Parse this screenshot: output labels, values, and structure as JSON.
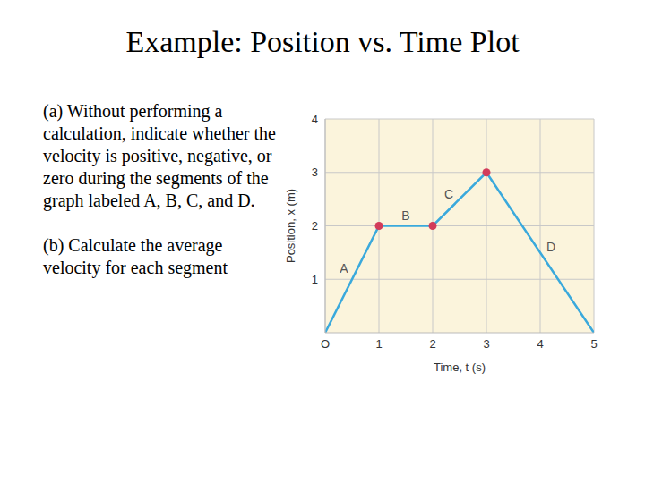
{
  "slide": {
    "title": "Example: Position vs. Time Plot",
    "paragraphs": [
      "(a) Without performing a calculation, indicate whether the velocity is positive, negative, or zero during the segments of the graph labeled A, B, C, and D.",
      "(b) Calculate the average velocity for each segment"
    ]
  },
  "chart_data": {
    "type": "line",
    "xlabel": "Time, t (s)",
    "ylabel": "Position, x (m)",
    "xlim": [
      0,
      5
    ],
    "ylim": [
      0,
      4
    ],
    "xticks": [
      {
        "value": 0,
        "label": "O"
      },
      1,
      2,
      3,
      4,
      5
    ],
    "yticks": [
      1,
      2,
      3,
      4
    ],
    "grid": true,
    "series": [
      {
        "type": "line",
        "color": "#3aa9dc",
        "x": [
          0,
          1,
          2,
          3,
          5
        ],
        "values": [
          0,
          2,
          2,
          3,
          0
        ]
      },
      {
        "type": "scatter",
        "color": "#d23c5a",
        "marker": "circle",
        "x": [
          1,
          2,
          3
        ],
        "values": [
          2,
          2,
          3
        ]
      }
    ],
    "annotations": [
      {
        "text": "A",
        "x": 0.35,
        "y": 1.2
      },
      {
        "text": "B",
        "x": 1.5,
        "y": 2.2
      },
      {
        "text": "C",
        "x": 2.3,
        "y": 2.6
      },
      {
        "text": "D",
        "x": 4.2,
        "y": 1.6
      }
    ]
  }
}
